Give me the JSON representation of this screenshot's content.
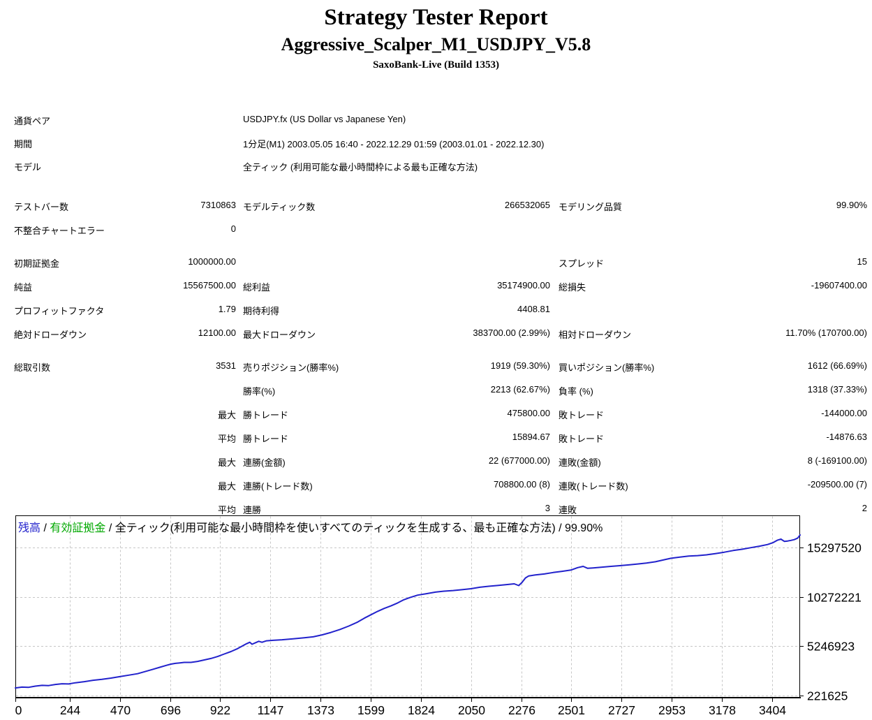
{
  "header": {
    "title": "Strategy Tester Report",
    "subtitle": "Aggressive_Scalper_M1_USDJPY_V5.8",
    "server": "SaxoBank-Live (Build 1353)"
  },
  "info_rows": [
    {
      "label": "通貨ペア",
      "value": "USDJPY.fx (US Dollar vs Japanese Yen)"
    },
    {
      "label": "期間",
      "value": "1分足(M1) 2003.05.05 16:40 - 2022.12.29 01:59 (2003.01.01 - 2022.12.30)"
    },
    {
      "label": "モデル",
      "value": "全ティック (利用可能な最小時間枠による最も正確な方法)"
    }
  ],
  "stat_rows": [
    {
      "gap": true,
      "c1l": "テストバー数",
      "c1v": "7310863",
      "c2l": "モデルティック数",
      "c2v": "266532065",
      "c3l": "モデリング品質",
      "c3v": "99.90%"
    },
    {
      "gap": false,
      "c1l": "不整合チャートエラー",
      "c1v": "0",
      "c2l": "",
      "c2v": "",
      "c3l": "",
      "c3v": ""
    },
    {
      "gap": true,
      "c1l": "初期証拠金",
      "c1v": "1000000.00",
      "c2l": "",
      "c2v": "",
      "c3l": "スプレッド",
      "c3v": "15"
    },
    {
      "gap": false,
      "c1l": "純益",
      "c1v": "15567500.00",
      "c2l": "総利益",
      "c2v": "35174900.00",
      "c3l": "総損失",
      "c3v": "-19607400.00"
    },
    {
      "gap": false,
      "c1l": "プロフィットファクタ",
      "c1v": "1.79",
      "c2l": "期待利得",
      "c2v": "4408.81",
      "c3l": "",
      "c3v": ""
    },
    {
      "gap": false,
      "c1l": "絶対ドローダウン",
      "c1v": "12100.00",
      "c2l": "最大ドローダウン",
      "c2v": "383700.00 (2.99%)",
      "c3l": "相対ドローダウン",
      "c3v": "11.70% (170700.00)"
    },
    {
      "gap": true,
      "c1l": "総取引数",
      "c1v": "3531",
      "c2l": "売りポジション(勝率%)",
      "c2v": "1919 (59.30%)",
      "c3l": "買いポジション(勝率%)",
      "c3v": "1612 (66.69%)"
    },
    {
      "gap": false,
      "c1l": "",
      "c1v": "",
      "c2l": "勝率(%)",
      "c2v": "2213 (62.67%)",
      "c3l": "負率 (%)",
      "c3v": "1318 (37.33%)"
    },
    {
      "gap": false,
      "c1l": "",
      "c1v": "最大",
      "c2l": "勝トレード",
      "c2v": "475800.00",
      "c3l": "敗トレード",
      "c3v": "-144000.00"
    },
    {
      "gap": false,
      "c1l": "",
      "c1v": "平均",
      "c2l": "勝トレード",
      "c2v": "15894.67",
      "c3l": "敗トレード",
      "c3v": "-14876.63"
    },
    {
      "gap": false,
      "c1l": "",
      "c1v": "最大",
      "c2l": "連勝(金額)",
      "c2v": "22 (677000.00)",
      "c3l": "連敗(金額)",
      "c3v": "8 (-169100.00)"
    },
    {
      "gap": false,
      "c1l": "",
      "c1v": "最大",
      "c2l": "連勝(トレード数)",
      "c2v": "708800.00 (8)",
      "c3l": "連敗(トレード数)",
      "c3v": "-209500.00 (7)"
    },
    {
      "gap": false,
      "c1l": "",
      "c1v": "平均",
      "c2l": "連勝",
      "c2v": "3",
      "c3l": "連敗",
      "c3v": "2"
    }
  ],
  "chart_data": {
    "type": "line",
    "legend": {
      "balance_label": "残高",
      "equity_label": "有効証拠金",
      "model_label": "全ティック(利用可能な最小時間枠を使いすべてのティックを生成する、最も正確な方法)",
      "quality": "99.90%",
      "separator": " / "
    },
    "x_ticks": [
      0,
      244,
      470,
      696,
      922,
      1147,
      1373,
      1599,
      1824,
      2050,
      2276,
      2501,
      2727,
      2953,
      3178,
      3404
    ],
    "y_ticks": [
      15297520,
      10272221,
      5246923,
      221625
    ],
    "xlim": [
      0,
      3531
    ],
    "ylim": [
      221625,
      15297520
    ],
    "colors": {
      "balance": "#2222CC",
      "equity": "#00A800",
      "grid": "#C6C6C6",
      "axis": "#000000"
    },
    "series": [
      {
        "name": "残高",
        "points": [
          [
            0,
            1000000
          ],
          [
            30,
            1080000
          ],
          [
            60,
            1060000
          ],
          [
            90,
            1180000
          ],
          [
            120,
            1260000
          ],
          [
            150,
            1240000
          ],
          [
            180,
            1350000
          ],
          [
            210,
            1420000
          ],
          [
            240,
            1400000
          ],
          [
            270,
            1520000
          ],
          [
            310,
            1640000
          ],
          [
            350,
            1780000
          ],
          [
            390,
            1870000
          ],
          [
            430,
            2000000
          ],
          [
            470,
            2150000
          ],
          [
            510,
            2300000
          ],
          [
            550,
            2450000
          ],
          [
            590,
            2700000
          ],
          [
            620,
            2900000
          ],
          [
            650,
            3100000
          ],
          [
            680,
            3300000
          ],
          [
            700,
            3420000
          ],
          [
            720,
            3500000
          ],
          [
            740,
            3550000
          ],
          [
            760,
            3600000
          ],
          [
            790,
            3600000
          ],
          [
            820,
            3700000
          ],
          [
            850,
            3850000
          ],
          [
            880,
            4000000
          ],
          [
            910,
            4200000
          ],
          [
            940,
            4450000
          ],
          [
            970,
            4700000
          ],
          [
            1000,
            5000000
          ],
          [
            1020,
            5250000
          ],
          [
            1040,
            5500000
          ],
          [
            1055,
            5650000
          ],
          [
            1065,
            5450000
          ],
          [
            1080,
            5600000
          ],
          [
            1095,
            5750000
          ],
          [
            1110,
            5650000
          ],
          [
            1130,
            5800000
          ],
          [
            1160,
            5850000
          ],
          [
            1200,
            5900000
          ],
          [
            1250,
            6000000
          ],
          [
            1300,
            6100000
          ],
          [
            1340,
            6200000
          ],
          [
            1380,
            6400000
          ],
          [
            1420,
            6650000
          ],
          [
            1460,
            6950000
          ],
          [
            1500,
            7300000
          ],
          [
            1540,
            7700000
          ],
          [
            1570,
            8100000
          ],
          [
            1600,
            8450000
          ],
          [
            1630,
            8800000
          ],
          [
            1660,
            9100000
          ],
          [
            1690,
            9350000
          ],
          [
            1720,
            9650000
          ],
          [
            1745,
            9950000
          ],
          [
            1775,
            10200000
          ],
          [
            1810,
            10450000
          ],
          [
            1850,
            10600000
          ],
          [
            1890,
            10750000
          ],
          [
            1930,
            10850000
          ],
          [
            1970,
            10920000
          ],
          [
            2010,
            11000000
          ],
          [
            2050,
            11100000
          ],
          [
            2090,
            11250000
          ],
          [
            2130,
            11350000
          ],
          [
            2170,
            11430000
          ],
          [
            2210,
            11520000
          ],
          [
            2245,
            11600000
          ],
          [
            2265,
            11420000
          ],
          [
            2280,
            11750000
          ],
          [
            2295,
            12200000
          ],
          [
            2310,
            12400000
          ],
          [
            2340,
            12500000
          ],
          [
            2380,
            12600000
          ],
          [
            2420,
            12750000
          ],
          [
            2460,
            12870000
          ],
          [
            2500,
            13000000
          ],
          [
            2530,
            13250000
          ],
          [
            2555,
            13380000
          ],
          [
            2575,
            13180000
          ],
          [
            2600,
            13220000
          ],
          [
            2640,
            13300000
          ],
          [
            2680,
            13380000
          ],
          [
            2720,
            13450000
          ],
          [
            2760,
            13530000
          ],
          [
            2800,
            13620000
          ],
          [
            2840,
            13720000
          ],
          [
            2880,
            13850000
          ],
          [
            2920,
            14050000
          ],
          [
            2950,
            14200000
          ],
          [
            2990,
            14320000
          ],
          [
            3030,
            14420000
          ],
          [
            3070,
            14470000
          ],
          [
            3110,
            14550000
          ],
          [
            3150,
            14680000
          ],
          [
            3190,
            14820000
          ],
          [
            3230,
            14990000
          ],
          [
            3270,
            15120000
          ],
          [
            3310,
            15280000
          ],
          [
            3350,
            15440000
          ],
          [
            3385,
            15600000
          ],
          [
            3410,
            15800000
          ],
          [
            3430,
            16050000
          ],
          [
            3445,
            16150000
          ],
          [
            3460,
            15920000
          ],
          [
            3475,
            15960000
          ],
          [
            3490,
            16020000
          ],
          [
            3505,
            16100000
          ],
          [
            3520,
            16250000
          ],
          [
            3531,
            16567500
          ]
        ]
      }
    ]
  }
}
